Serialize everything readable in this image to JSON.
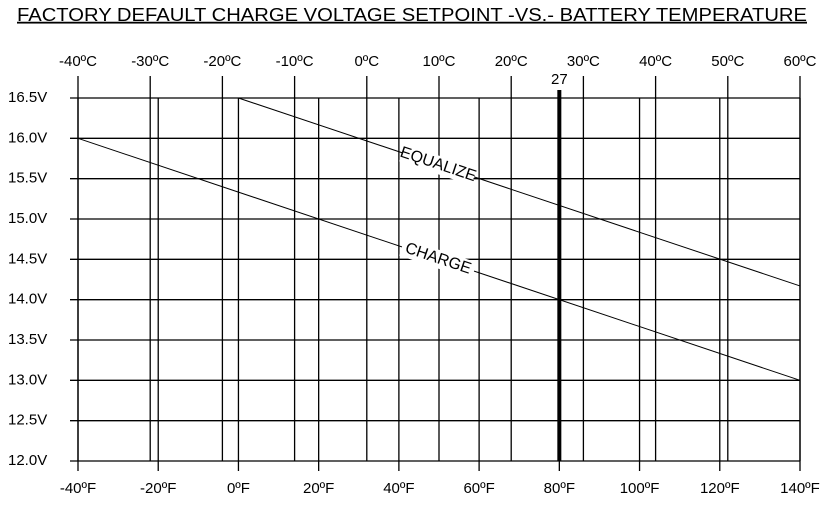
{
  "chart_data": {
    "type": "line",
    "title": "FACTORY DEFAULT CHARGE VOLTAGE SETPOINT -VS.- BATTERY TEMPERATURE",
    "xlim": [
      -40,
      140
    ],
    "xticks": [
      {
        "value": -40,
        "label": "-40ºF"
      },
      {
        "value": -20,
        "label": "-20ºF"
      },
      {
        "value": 0,
        "label": "0ºF"
      },
      {
        "value": 20,
        "label": "20ºF"
      },
      {
        "value": 40,
        "label": "40ºF"
      },
      {
        "value": 60,
        "label": "60ºF"
      },
      {
        "value": 80,
        "label": "80ºF"
      },
      {
        "value": 100,
        "label": "100ºF"
      },
      {
        "value": 120,
        "label": "120ºF"
      },
      {
        "value": 140,
        "label": "140ºF"
      }
    ],
    "x2lim": [
      -40,
      60
    ],
    "x2ticks": [
      {
        "value": -40,
        "label": "-40ºC"
      },
      {
        "value": -30,
        "label": "-30ºC"
      },
      {
        "value": -20,
        "label": "-20ºC"
      },
      {
        "value": -10,
        "label": "-10ºC"
      },
      {
        "value": 0,
        "label": "0ºC"
      },
      {
        "value": 10,
        "label": "10ºC"
      },
      {
        "value": 20,
        "label": "20ºC"
      },
      {
        "value": 30,
        "label": "30ºC"
      },
      {
        "value": 40,
        "label": "40ºC"
      },
      {
        "value": 50,
        "label": "50ºC"
      },
      {
        "value": 60,
        "label": "60ºC"
      }
    ],
    "ylim": [
      12.0,
      16.5
    ],
    "yticks": [
      {
        "value": 16.5,
        "label": "16.5V"
      },
      {
        "value": 16.0,
        "label": "16.0V"
      },
      {
        "value": 15.5,
        "label": "15.5V"
      },
      {
        "value": 15.0,
        "label": "15.0V"
      },
      {
        "value": 14.5,
        "label": "14.5V"
      },
      {
        "value": 14.0,
        "label": "14.0V"
      },
      {
        "value": 13.5,
        "label": "13.5V"
      },
      {
        "value": 13.0,
        "label": "13.0V"
      },
      {
        "value": 12.5,
        "label": "12.5V"
      },
      {
        "value": 12.0,
        "label": "12.0V"
      }
    ],
    "grid": true,
    "reference_line": {
      "label": "27",
      "x": 80
    },
    "series": [
      {
        "name": "EQUALIZE",
        "color": "#000000",
        "x": [
          0,
          140
        ],
        "values": [
          16.5,
          14.17
        ]
      },
      {
        "name": "CHARGE",
        "color": "#000000",
        "x": [
          -40,
          140
        ],
        "values": [
          16.0,
          13.0
        ]
      }
    ]
  }
}
